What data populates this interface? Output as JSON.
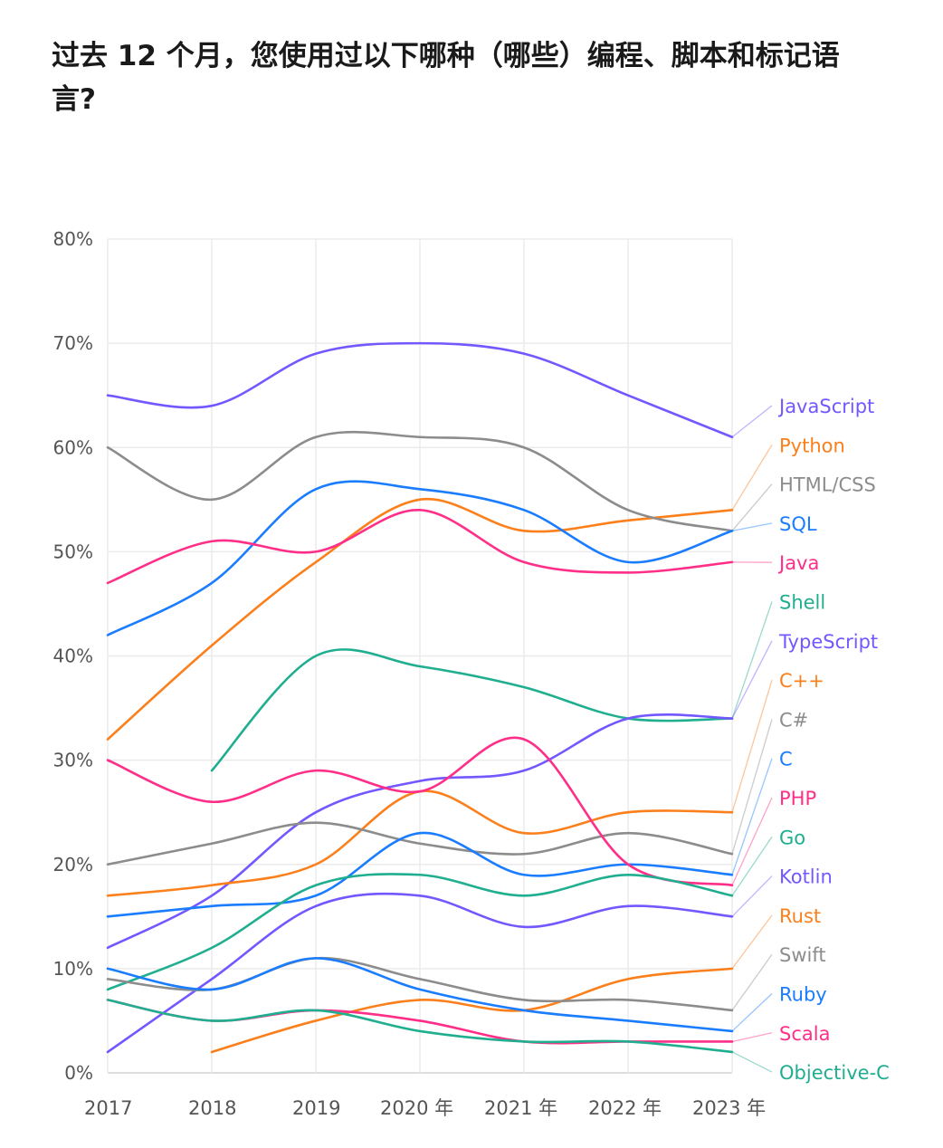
{
  "chart_data": {
    "type": "line",
    "title": "过去 12 个月，您使用过以下哪种（哪些）编程、脚本和标记语言?",
    "categories": [
      "2017",
      "2018",
      "2019",
      "2020 年",
      "2021 年",
      "2022 年",
      "2023 年"
    ],
    "yticks": [
      "0%",
      "10%",
      "20%",
      "30%",
      "40%",
      "50%",
      "60%",
      "70%",
      "80%"
    ],
    "ylim": [
      0,
      80
    ],
    "grid": true,
    "legend": "right, labels at line ends",
    "series": [
      {
        "name": "JavaScript",
        "color": "#7357ff",
        "values": [
          65,
          64,
          69,
          70,
          69,
          65,
          61
        ]
      },
      {
        "name": "Python",
        "color": "#fb7f1b",
        "values": [
          32,
          41,
          49,
          55,
          52,
          53,
          54
        ]
      },
      {
        "name": "HTML/CSS",
        "color": "#8c8c8c",
        "values": [
          60,
          55,
          61,
          61,
          60,
          54,
          52
        ]
      },
      {
        "name": "SQL",
        "color": "#1a7cff",
        "values": [
          42,
          47,
          56,
          56,
          54,
          49,
          52
        ]
      },
      {
        "name": "Java",
        "color": "#ff2e88",
        "values": [
          47,
          51,
          50,
          54,
          49,
          48,
          49
        ]
      },
      {
        "name": "Shell",
        "color": "#20ae90",
        "values": [
          null,
          29,
          40,
          39,
          37,
          34,
          34
        ]
      },
      {
        "name": "TypeScript",
        "color": "#7357ff",
        "values": [
          12,
          17,
          25,
          28,
          29,
          34,
          34
        ]
      },
      {
        "name": "C++",
        "color": "#fb7f1b",
        "values": [
          17,
          18,
          20,
          27,
          23,
          25,
          25
        ]
      },
      {
        "name": "C#",
        "color": "#8c8c8c",
        "values": [
          20,
          22,
          24,
          22,
          21,
          23,
          21
        ]
      },
      {
        "name": "C",
        "color": "#1a7cff",
        "values": [
          15,
          16,
          17,
          23,
          19,
          20,
          19
        ]
      },
      {
        "name": "PHP",
        "color": "#ff2e88",
        "values": [
          30,
          26,
          29,
          27,
          32,
          20,
          18
        ]
      },
      {
        "name": "Go",
        "color": "#20ae90",
        "values": [
          8,
          12,
          18,
          19,
          17,
          19,
          17
        ]
      },
      {
        "name": "Kotlin",
        "color": "#7357ff",
        "values": [
          2,
          9,
          16,
          17,
          14,
          16,
          15
        ]
      },
      {
        "name": "Rust",
        "color": "#fb7f1b",
        "values": [
          null,
          2,
          5,
          7,
          6,
          9,
          10
        ]
      },
      {
        "name": "Swift",
        "color": "#8c8c8c",
        "values": [
          9,
          8,
          11,
          9,
          7,
          7,
          6
        ]
      },
      {
        "name": "Ruby",
        "color": "#1a7cff",
        "values": [
          10,
          8,
          11,
          8,
          6,
          5,
          4
        ]
      },
      {
        "name": "Scala",
        "color": "#ff2e88",
        "values": [
          7,
          5,
          6,
          5,
          3,
          3,
          3
        ]
      },
      {
        "name": "Objective-C",
        "color": "#20ae90",
        "values": [
          7,
          5,
          6,
          4,
          3,
          3,
          2
        ]
      }
    ]
  }
}
